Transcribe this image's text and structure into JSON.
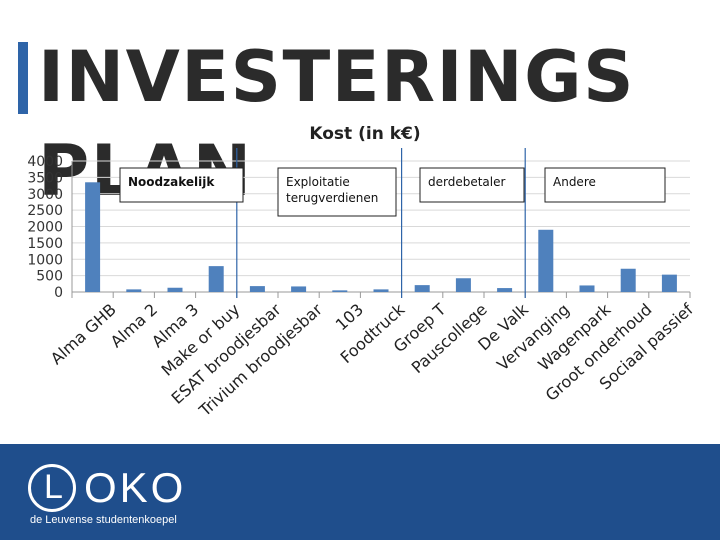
{
  "slide": {
    "title": "INVESTERINGSPLAN"
  },
  "chart_data": {
    "type": "bar",
    "title": "Kost (in k€)",
    "categories": [
      "Alma GHB",
      "Alma 2",
      "Alma 3",
      "Make or buy",
      "ESAT broodjesbar",
      "Trivium broodjesbar",
      "103",
      "Foodtruck",
      "Groep T",
      "Pauscollege",
      "De Valk",
      "Vervanging",
      "Wagenpark",
      "Groot onderhoud",
      "Sociaal passief"
    ],
    "values": [
      3350,
      80,
      130,
      790,
      180,
      170,
      50,
      80,
      210,
      420,
      120,
      1900,
      200,
      710,
      530
    ],
    "yticks": [
      0,
      500,
      1000,
      1500,
      2000,
      2500,
      3000,
      3500,
      4000
    ],
    "ylim": [
      0,
      4000
    ],
    "grid": true,
    "bar_color": "#4F81BD",
    "groups": [
      {
        "label": "Noodzakelijk",
        "bold": true
      },
      {
        "label": "Exploitatie terugverdienen",
        "bold": false
      },
      {
        "label": "derdebetaler",
        "bold": false
      },
      {
        "label": "Andere",
        "bold": false
      }
    ]
  },
  "footer": {
    "logo_letter": "L",
    "logo_rest": "OKO",
    "tagline": "de Leuvense studentenkoepel",
    "background": "#1F4E8C"
  }
}
